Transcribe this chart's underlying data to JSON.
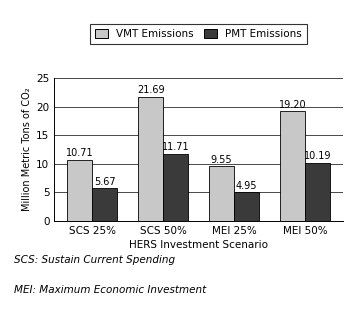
{
  "categories": [
    "SCS 25%",
    "SCS 50%",
    "MEI 25%",
    "MEI 50%"
  ],
  "vmt_values": [
    10.71,
    21.69,
    9.55,
    19.2
  ],
  "pmt_values": [
    5.67,
    11.71,
    4.95,
    10.19
  ],
  "vmt_color": "#c8c8c8",
  "pmt_color": "#3a3a3a",
  "xlabel": "HERS Investment Scenario",
  "ylabel": "Million Metric Tons of CO₂",
  "ylim": [
    0,
    25
  ],
  "yticks": [
    0,
    5,
    10,
    15,
    20,
    25
  ],
  "legend_vmt": "VMT Emissions",
  "legend_pmt": "PMT Emissions",
  "footnote1": "SCS: Sustain Current Spending",
  "footnote2": "MEI: Maximum Economic Investment",
  "title_bg_color": "#111111",
  "title_text_color": "#ffffff",
  "bar_width": 0.35,
  "title_fontsize": 9.5
}
